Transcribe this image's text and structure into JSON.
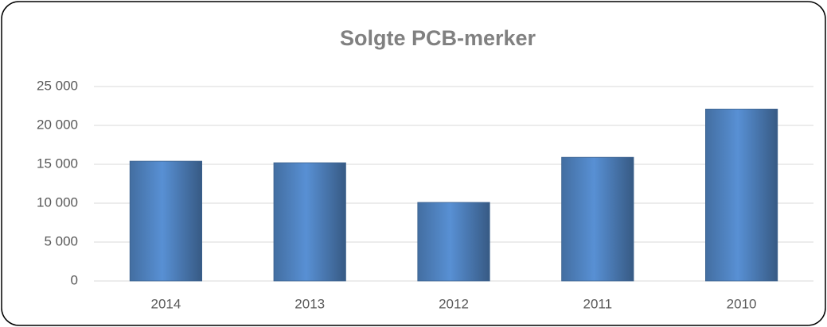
{
  "chart_data": {
    "type": "bar",
    "title": "Solgte PCB-merker",
    "categories": [
      "2014",
      "2013",
      "2012",
      "2011",
      "2010"
    ],
    "values": [
      15400,
      15200,
      10100,
      15900,
      22100
    ],
    "color": "#4f81bd",
    "ylim": [
      0,
      25000
    ],
    "yticks": [
      0,
      {
        "value": 5000,
        "label": "5 000"
      },
      {
        "value": 10000,
        "label": "10 000"
      },
      {
        "value": 15000,
        "label": "15 000"
      },
      {
        "value": 20000,
        "label": "20 000"
      },
      {
        "value": 25000,
        "label": "25 000"
      }
    ],
    "grid": true
  }
}
